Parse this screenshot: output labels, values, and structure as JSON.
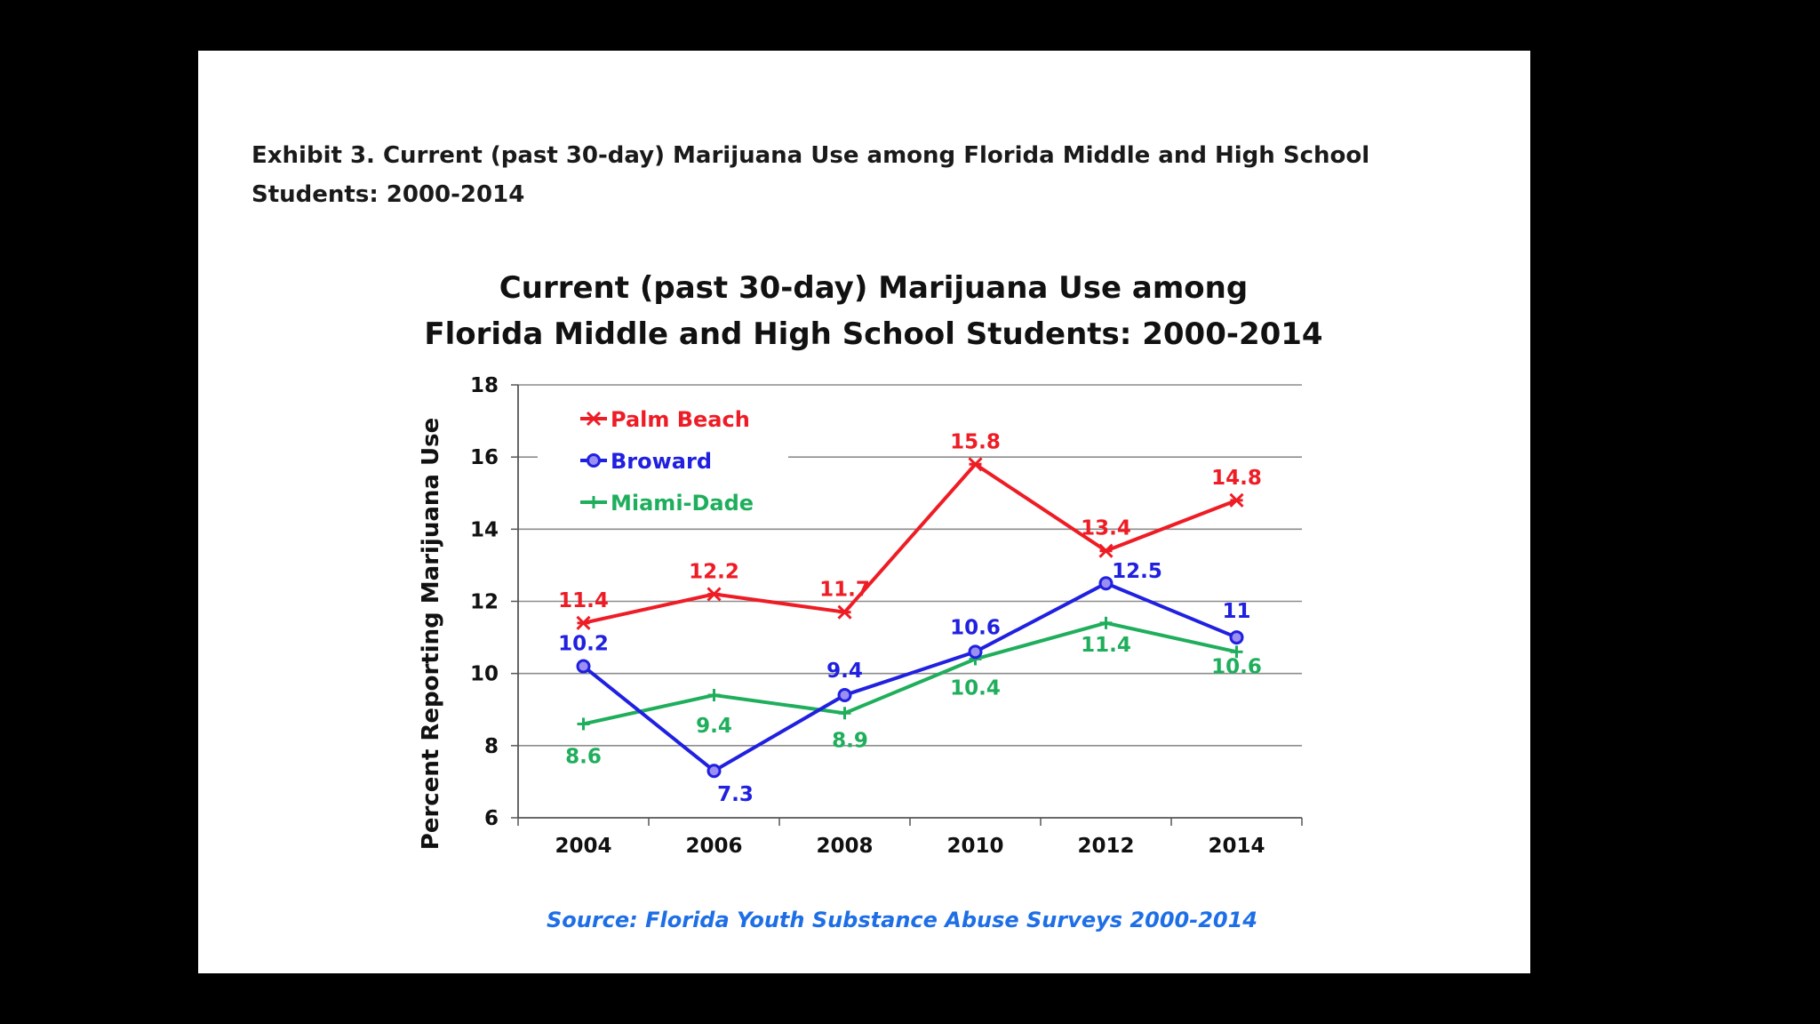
{
  "exhibit_title": "Exhibit 3. Current (past 30-day) Marijuana Use among Florida Middle and High School Students: 2000-2014",
  "colors": {
    "palm_beach": "#ee1c25",
    "broward": "#2020e0",
    "miami_dade": "#1fae5c",
    "source": "#1e6fe6",
    "grid": "#8c8c8c"
  },
  "chart_data": {
    "type": "line",
    "title_lines": [
      "Current (past 30-day) Marijuana Use among",
      "Florida Middle and High School Students: 2000-2014"
    ],
    "xlabel": "",
    "ylabel": "Percent Reporting Marijuana Use",
    "categories": [
      "2004",
      "2006",
      "2008",
      "2010",
      "2012",
      "2014"
    ],
    "ylim": [
      6,
      18
    ],
    "yticks": [
      "6",
      "8",
      "10",
      "12",
      "14",
      "16",
      "18"
    ],
    "grid": true,
    "legend_position": "top-left",
    "series": [
      {
        "name": "Palm Beach",
        "marker": "asterisk",
        "color": "#ee1c25",
        "values": [
          11.4,
          12.2,
          11.7,
          15.8,
          13.4,
          14.8
        ],
        "labels": [
          "11.4",
          "12.2",
          "11.7",
          "15.8",
          "13.4",
          "14.8"
        ]
      },
      {
        "name": "Broward",
        "marker": "circle",
        "color": "#2020e0",
        "values": [
          10.2,
          7.3,
          9.4,
          10.6,
          12.5,
          11
        ],
        "labels": [
          "10.2",
          "7.3",
          "9.4",
          "10.6",
          "12.5",
          "11"
        ]
      },
      {
        "name": "Miami-Dade",
        "marker": "plus",
        "color": "#1fae5c",
        "values": [
          8.6,
          9.4,
          8.9,
          10.4,
          11.4,
          10.6
        ],
        "labels": [
          "8.6",
          "9.4",
          "8.9",
          "10.4",
          "11.4",
          "10.6"
        ]
      }
    ],
    "source": "Source: Florida Youth Substance Abuse Surveys 2000-2014"
  }
}
